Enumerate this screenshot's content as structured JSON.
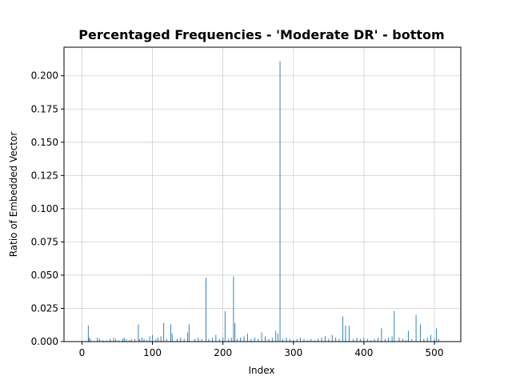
{
  "chart_data": {
    "type": "bar",
    "title": "Percentaged Frequencies - 'Moderate DR' - bottom",
    "xlabel": "Index",
    "ylabel": "Ratio of Embedded Vector",
    "xlim": [
      -25.45,
      537.45
    ],
    "ylim": [
      0,
      0.2215
    ],
    "xticks": [
      0,
      100,
      200,
      300,
      400,
      500
    ],
    "yticks": [
      0.0,
      0.025,
      0.05,
      0.075,
      0.1,
      0.125,
      0.15,
      0.175,
      0.2
    ],
    "ytick_labels": [
      "0.000",
      "0.025",
      "0.050",
      "0.075",
      "0.100",
      "0.125",
      "0.150",
      "0.175",
      "0.200"
    ],
    "xtick_labels": [
      "0",
      "100",
      "200",
      "300",
      "400",
      "500"
    ],
    "grid": true,
    "bar_color": "#1f77b4",
    "x": [
      9,
      10,
      12,
      22,
      25,
      30,
      35,
      40,
      45,
      48,
      52,
      58,
      60,
      63,
      67,
      70,
      75,
      80,
      82,
      85,
      88,
      92,
      96,
      100,
      105,
      108,
      112,
      116,
      120,
      126,
      128,
      135,
      140,
      145,
      150,
      152,
      160,
      165,
      170,
      176,
      180,
      185,
      190,
      195,
      200,
      203,
      208,
      212,
      215,
      217,
      220,
      225,
      230,
      235,
      240,
      245,
      250,
      255,
      260,
      265,
      270,
      275,
      278,
      281,
      285,
      290,
      295,
      300,
      305,
      310,
      315,
      320,
      325,
      330,
      335,
      340,
      345,
      350,
      355,
      360,
      365,
      370,
      374,
      379,
      385,
      390,
      395,
      400,
      405,
      410,
      415,
      420,
      425,
      430,
      435,
      440,
      443,
      450,
      455,
      460,
      463,
      468,
      474,
      480,
      485,
      490,
      495,
      500,
      503,
      506
    ],
    "values": [
      0.012,
      0.003,
      0.002,
      0.003,
      0.002,
      0.001,
      0.001,
      0.002,
      0.003,
      0.002,
      0.001,
      0.002,
      0.003,
      0.002,
      0.001,
      0.002,
      0.002,
      0.013,
      0.002,
      0.003,
      0.002,
      0.001,
      0.004,
      0.005,
      0.002,
      0.003,
      0.004,
      0.014,
      0.002,
      0.013,
      0.006,
      0.002,
      0.003,
      0.002,
      0.007,
      0.013,
      0.002,
      0.003,
      0.002,
      0.048,
      0.002,
      0.003,
      0.005,
      0.002,
      0.003,
      0.023,
      0.002,
      0.003,
      0.049,
      0.014,
      0.002,
      0.003,
      0.004,
      0.006,
      0.002,
      0.003,
      0.002,
      0.007,
      0.004,
      0.002,
      0.003,
      0.008,
      0.006,
      0.211,
      0.002,
      0.003,
      0.002,
      0.001,
      0.002,
      0.003,
      0.002,
      0.001,
      0.002,
      0.001,
      0.002,
      0.003,
      0.004,
      0.002,
      0.005,
      0.003,
      0.002,
      0.019,
      0.012,
      0.012,
      0.002,
      0.003,
      0.002,
      0.003,
      0.002,
      0.001,
      0.002,
      0.003,
      0.01,
      0.002,
      0.003,
      0.004,
      0.023,
      0.003,
      0.002,
      0.001,
      0.008,
      0.002,
      0.02,
      0.013,
      0.002,
      0.003,
      0.005,
      0.002,
      0.01,
      0.002
    ]
  }
}
